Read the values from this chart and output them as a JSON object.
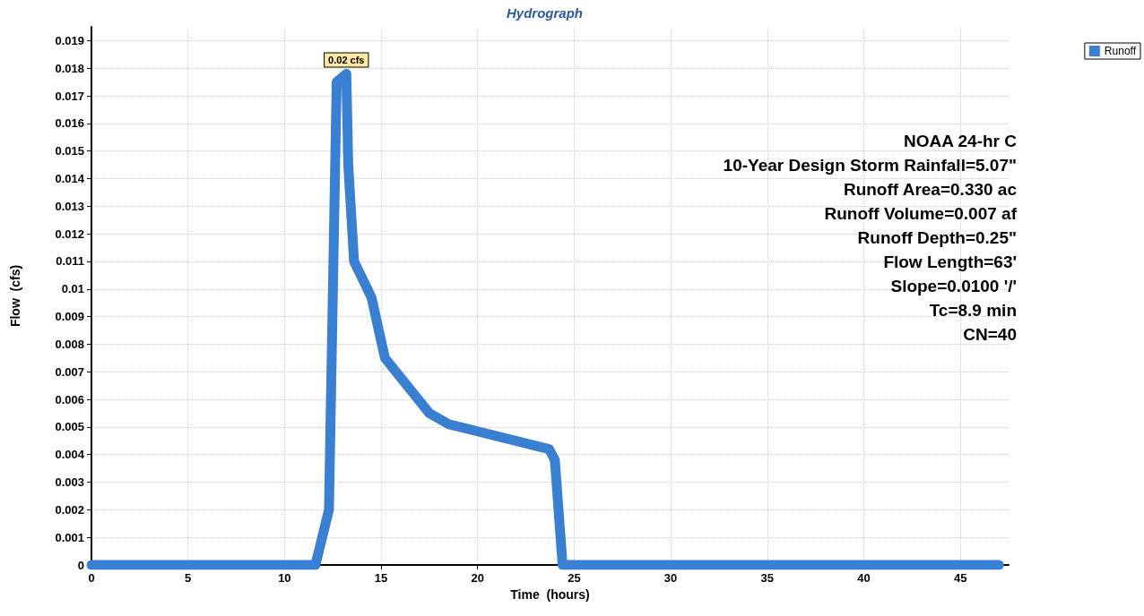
{
  "chart_data": {
    "type": "line",
    "title": "Hydrograph",
    "xlabel": "Time  (hours)",
    "ylabel": "Flow  (cfs)",
    "x": [
      0,
      11.6,
      12.3,
      12.7,
      13.2,
      13.3,
      13.6,
      14.5,
      15.2,
      17.5,
      18.5,
      23.7,
      24,
      24.4,
      47
    ],
    "series": [
      {
        "name": "Runoff",
        "color": "#3a80d2",
        "values": [
          0,
          0,
          0.002,
          0.0175,
          0.0178,
          0.0145,
          0.011,
          0.0097,
          0.0075,
          0.0055,
          0.0051,
          0.0042,
          0.0038,
          0,
          0
        ]
      }
    ],
    "xlim": [
      0,
      47.5
    ],
    "xticks": [
      0,
      5,
      10,
      15,
      20,
      25,
      30,
      35,
      40,
      45
    ],
    "ylim": [
      0,
      0.0195
    ],
    "yticks": [
      0,
      0.001,
      0.002,
      0.003,
      0.004,
      0.005,
      0.006,
      0.007,
      0.008,
      0.009,
      0.01,
      0.011,
      0.012,
      0.013,
      0.014,
      0.015,
      0.016,
      0.017,
      0.018,
      0.019
    ],
    "grid": true,
    "legend": "top right",
    "line_style": "solid",
    "annotations": [
      {
        "text": "0.02 cfs",
        "x": 13.2,
        "y": 0.0178
      },
      "NOAA 24-hr C",
      "10-Year Design Storm Rainfall=5.07\"",
      "Runoff Area=0.330 ac",
      "Runoff Volume=0.007 af",
      "Runoff Depth=0.25\"",
      "Flow Length=63'",
      "Slope=0.0100 '/'",
      "Tc=8.9 min",
      "CN=40"
    ]
  }
}
